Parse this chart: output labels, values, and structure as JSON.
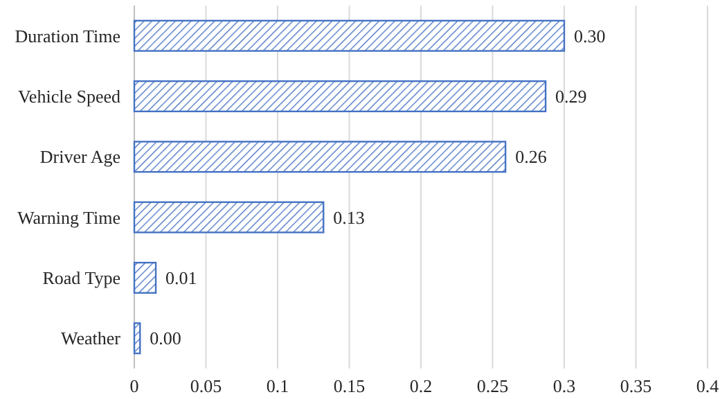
{
  "chart_data": {
    "type": "bar",
    "orientation": "horizontal",
    "categories": [
      "Duration Time",
      "Vehicle Speed",
      "Driver Age",
      "Warning Time",
      "Road Type",
      "Weather"
    ],
    "values": [
      0.3,
      0.287,
      0.259,
      0.132,
      0.015,
      0.004
    ],
    "value_labels": [
      "0.30",
      "0.29",
      "0.26",
      "0.13",
      "0.01",
      "0.00"
    ],
    "color": "#4472c4",
    "xlim": [
      0,
      0.4
    ],
    "xticks": [
      0,
      0.05,
      0.1,
      0.15,
      0.2,
      0.25,
      0.3,
      0.35,
      0.4
    ],
    "grid": "x"
  }
}
